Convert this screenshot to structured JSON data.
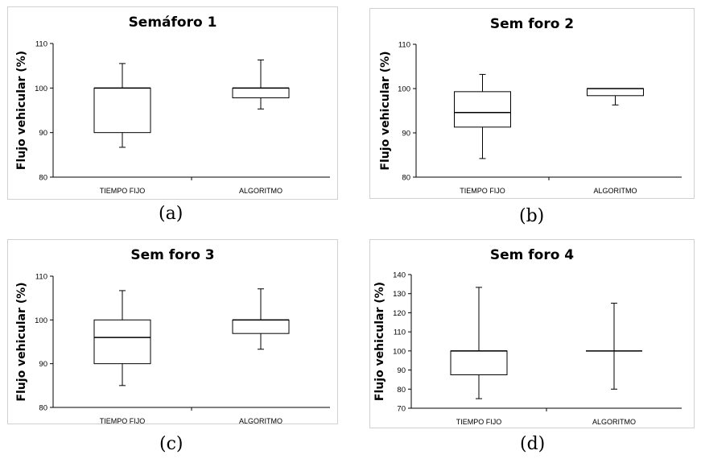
{
  "chart_data": [
    {
      "type": "box",
      "title": "Semáforo 1",
      "caption": "(a)",
      "ylabel": "Flujo vehicular (%)",
      "ylim": [
        80,
        110
      ],
      "yticks": [
        80,
        90,
        100,
        110
      ],
      "categories": [
        "TIEMPO FIJO",
        "ALGORITMO"
      ],
      "boxes": [
        {
          "min": 86.7,
          "q1": 90.0,
          "median": 100.0,
          "q3": 100.0,
          "max": 105.5
        },
        {
          "min": 95.3,
          "q1": 97.8,
          "median": 100.0,
          "q3": 100.0,
          "max": 106.3
        }
      ]
    },
    {
      "type": "box",
      "title": "Sem  foro 2",
      "caption": "(b)",
      "ylabel": "Flujo vehicular (%)",
      "ylim": [
        80,
        110
      ],
      "yticks": [
        80,
        90,
        100,
        110
      ],
      "categories": [
        "TIEMPO FIJO",
        "ALGORITMO"
      ],
      "boxes": [
        {
          "min": 84.2,
          "q1": 91.3,
          "median": 94.6,
          "q3": 99.3,
          "max": 103.2
        },
        {
          "min": 96.3,
          "q1": 98.4,
          "median": 100.0,
          "q3": 100.0,
          "max": 100.0
        }
      ]
    },
    {
      "type": "box",
      "title": "Sem  foro 3",
      "caption": "(c)",
      "ylabel": "Flujo vehicular (%)",
      "ylim": [
        80,
        110
      ],
      "yticks": [
        80,
        90,
        100,
        110
      ],
      "categories": [
        "TIEMPO FIJO",
        "ALGORITMO"
      ],
      "boxes": [
        {
          "min": 85.0,
          "q1": 90.0,
          "median": 96.0,
          "q3": 100.0,
          "max": 106.7
        },
        {
          "min": 93.3,
          "q1": 96.9,
          "median": 100.0,
          "q3": 100.0,
          "max": 107.1
        }
      ]
    },
    {
      "type": "box",
      "title": "Sem  foro 4",
      "caption": "(d)",
      "ylabel": "Flujo vehicular (%)",
      "ylim": [
        70,
        140
      ],
      "yticks": [
        70,
        80,
        90,
        100,
        110,
        120,
        130,
        140
      ],
      "categories": [
        "TIEMPO FIJO",
        "ALGORITMO"
      ],
      "boxes": [
        {
          "min": 75.0,
          "q1": 87.5,
          "median": 100.0,
          "q3": 100.0,
          "max": 133.3
        },
        {
          "min": 80.0,
          "q1": 100.0,
          "median": 100.0,
          "q3": 100.0,
          "max": 125.0
        }
      ]
    }
  ]
}
